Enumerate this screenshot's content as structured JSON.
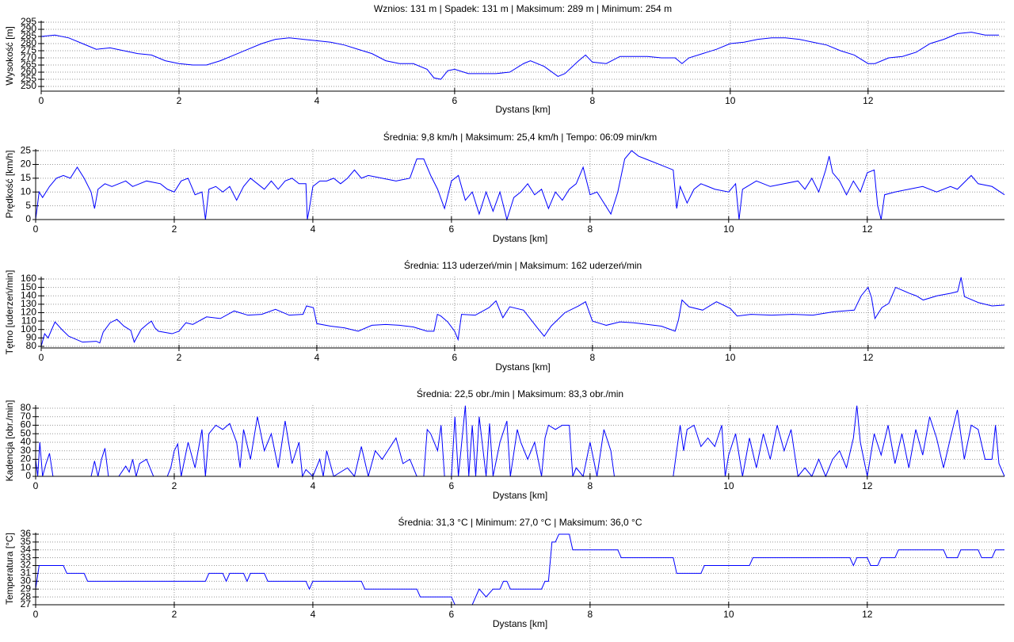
{
  "chart_data": [
    {
      "type": "line",
      "title": "Wznios: 131 m | Spadek: 131 m | Maksimum: 289 m | Minimum: 254 m",
      "xlabel": "Dystans [km]",
      "ylabel": "Wysokość [m]",
      "color": "#0000ff",
      "grid": true,
      "xlim": [
        0,
        13.98
      ],
      "ylim": [
        246.7,
        296.1
      ],
      "xticks": [
        0,
        2,
        4,
        6,
        8,
        10,
        12
      ],
      "yticks": [
        250,
        255,
        260,
        265,
        270,
        275,
        280,
        285,
        290,
        295
      ],
      "x": [
        0,
        0.2,
        0.4,
        0.6,
        0.8,
        1.0,
        1.2,
        1.4,
        1.6,
        1.8,
        2.0,
        2.2,
        2.4,
        2.6,
        2.8,
        3.0,
        3.2,
        3.4,
        3.6,
        3.8,
        4.0,
        4.2,
        4.4,
        4.6,
        4.8,
        5.0,
        5.2,
        5.4,
        5.6,
        5.7,
        5.8,
        5.9,
        6.0,
        6.2,
        6.4,
        6.6,
        6.8,
        7.0,
        7.1,
        7.3,
        7.5,
        7.6,
        7.8,
        7.9,
        8.0,
        8.2,
        8.4,
        8.6,
        8.8,
        9.0,
        9.2,
        9.3,
        9.4,
        9.6,
        9.8,
        10.0,
        10.2,
        10.4,
        10.6,
        10.8,
        11.0,
        11.2,
        11.4,
        11.6,
        11.8,
        12.0,
        12.1,
        12.3,
        12.5,
        12.7,
        12.9,
        13.1,
        13.3,
        13.5,
        13.7,
        13.9
      ],
      "values": [
        285,
        286,
        284,
        280,
        276,
        277,
        275,
        273,
        272,
        268,
        266,
        265,
        265,
        268,
        272,
        276,
        280,
        283,
        284,
        283,
        282,
        281,
        279,
        276,
        273,
        268,
        266,
        266,
        262,
        256,
        255,
        261,
        262,
        259,
        259,
        259,
        260,
        266,
        268,
        264,
        257,
        259,
        268,
        272,
        267,
        266,
        271,
        271,
        271,
        270,
        270,
        266,
        270,
        273,
        276,
        280,
        281,
        283,
        284,
        284,
        283,
        281,
        279,
        275,
        272,
        266,
        266,
        270,
        271,
        274,
        280,
        283,
        287,
        288,
        286,
        286
      ]
    },
    {
      "type": "line",
      "title": "Średnia: 9,8 km/h | Maksimum: 25,4 km/h | Tempo: 06:09 min/km",
      "xlabel": "Dystans [km]",
      "ylabel": "Prędkość [km/h]",
      "color": "#0000ff",
      "grid": true,
      "xlim": [
        0,
        13.98
      ],
      "ylim": [
        0,
        25.6
      ],
      "xticks": [
        0,
        2,
        4,
        6,
        8,
        10,
        12
      ],
      "yticks": [
        0,
        5,
        10,
        15,
        20,
        25
      ],
      "x": [
        0,
        0.05,
        0.1,
        0.2,
        0.3,
        0.4,
        0.5,
        0.6,
        0.7,
        0.8,
        0.85,
        0.9,
        1.0,
        1.1,
        1.2,
        1.3,
        1.4,
        1.5,
        1.6,
        1.8,
        1.9,
        2.0,
        2.1,
        2.2,
        2.3,
        2.4,
        2.45,
        2.5,
        2.6,
        2.7,
        2.8,
        2.9,
        3.0,
        3.1,
        3.2,
        3.3,
        3.4,
        3.5,
        3.6,
        3.7,
        3.8,
        3.9,
        3.92,
        3.95,
        4.0,
        4.1,
        4.2,
        4.3,
        4.4,
        4.5,
        4.6,
        4.7,
        4.8,
        5.0,
        5.2,
        5.4,
        5.5,
        5.6,
        5.7,
        5.8,
        5.9,
        6.0,
        6.1,
        6.2,
        6.3,
        6.4,
        6.5,
        6.6,
        6.7,
        6.8,
        6.9,
        7.0,
        7.1,
        7.2,
        7.3,
        7.4,
        7.5,
        7.6,
        7.7,
        7.8,
        7.9,
        8.0,
        8.1,
        8.3,
        8.4,
        8.5,
        8.6,
        8.7,
        8.8,
        9.0,
        9.2,
        9.25,
        9.3,
        9.4,
        9.5,
        9.6,
        9.8,
        10.0,
        10.1,
        10.15,
        10.2,
        10.4,
        10.6,
        10.8,
        11.0,
        11.1,
        11.2,
        11.3,
        11.4,
        11.45,
        11.5,
        11.6,
        11.7,
        11.8,
        11.9,
        12.0,
        12.1,
        12.15,
        12.2,
        12.25,
        12.4,
        12.6,
        12.8,
        13.0,
        13.2,
        13.3,
        13.5,
        13.6,
        13.8,
        13.98
      ],
      "values": [
        0,
        10,
        8,
        12,
        15,
        16,
        15,
        19,
        15,
        10,
        4,
        11,
        13,
        12,
        13,
        14,
        12,
        13,
        14,
        13,
        11,
        10,
        14,
        15,
        9,
        10,
        0,
        11,
        12,
        10,
        12,
        7,
        12,
        15,
        13,
        11,
        14,
        11,
        14,
        15,
        13,
        13,
        0,
        4,
        12,
        14,
        14,
        15,
        13,
        15,
        18,
        15,
        16,
        15,
        14,
        15,
        22,
        22,
        16,
        11,
        4,
        14,
        16,
        7,
        10,
        2,
        10,
        3,
        10,
        0,
        8,
        10,
        13,
        9,
        11,
        4,
        10,
        7,
        11,
        13,
        19,
        9,
        10,
        2,
        10,
        22,
        25,
        23,
        22,
        20,
        18,
        4,
        12,
        6,
        11,
        13,
        11,
        10,
        13,
        0,
        11,
        14,
        12,
        13,
        14,
        11,
        15,
        10,
        18,
        23,
        17,
        14,
        9,
        14,
        10,
        17,
        18,
        5,
        0,
        9,
        10,
        11,
        12,
        10,
        12,
        11,
        16,
        13,
        12,
        9
      ]
    },
    {
      "type": "line",
      "title": "Średnia: 113 uderzeń/min | Maksimum: 162 uderzeń/min",
      "xlabel": "Dystans [km]",
      "ylabel": "Tętno [uderzeń/min]",
      "color": "#0000ff",
      "grid": true,
      "xlim": [
        0,
        13.98
      ],
      "ylim": [
        78.1,
        162.8
      ],
      "xticks": [
        0,
        2,
        4,
        6,
        8,
        10,
        12
      ],
      "yticks": [
        80,
        90,
        100,
        110,
        120,
        130,
        140,
        150,
        160
      ],
      "x": [
        0,
        0.05,
        0.1,
        0.2,
        0.3,
        0.4,
        0.6,
        0.8,
        0.85,
        0.9,
        1.0,
        1.1,
        1.2,
        1.3,
        1.35,
        1.45,
        1.55,
        1.6,
        1.65,
        1.7,
        1.9,
        2.0,
        2.1,
        2.2,
        2.4,
        2.6,
        2.8,
        3.0,
        3.2,
        3.4,
        3.6,
        3.8,
        3.85,
        3.95,
        4.0,
        4.2,
        4.4,
        4.6,
        4.8,
        5.0,
        5.2,
        5.4,
        5.6,
        5.7,
        5.75,
        5.8,
        5.9,
        6.0,
        6.05,
        6.1,
        6.3,
        6.5,
        6.6,
        6.7,
        6.8,
        7.0,
        7.2,
        7.3,
        7.4,
        7.6,
        7.8,
        7.9,
        8.0,
        8.2,
        8.4,
        8.6,
        8.8,
        9.0,
        9.2,
        9.25,
        9.3,
        9.4,
        9.6,
        9.8,
        10.0,
        10.1,
        10.3,
        10.6,
        10.9,
        11.2,
        11.5,
        11.8,
        11.9,
        12.0,
        12.05,
        12.1,
        12.2,
        12.3,
        12.4,
        12.6,
        12.7,
        12.8,
        13.0,
        13.2,
        13.3,
        13.35,
        13.4,
        13.6,
        13.8,
        13.98
      ],
      "values": [
        80,
        95,
        90,
        109,
        100,
        92,
        85,
        86,
        84,
        97,
        108,
        112,
        104,
        99,
        85,
        100,
        107,
        110,
        102,
        98,
        95,
        98,
        108,
        106,
        115,
        113,
        122,
        117,
        118,
        124,
        117,
        118,
        128,
        126,
        107,
        104,
        102,
        98,
        105,
        106,
        105,
        103,
        98,
        98,
        118,
        116,
        109,
        98,
        88,
        118,
        117,
        126,
        134,
        114,
        127,
        123,
        102,
        92,
        104,
        120,
        128,
        133,
        110,
        105,
        109,
        108,
        106,
        104,
        98,
        112,
        135,
        127,
        123,
        133,
        125,
        116,
        118,
        117,
        118,
        117,
        121,
        123,
        140,
        150,
        138,
        113,
        126,
        131,
        150,
        143,
        140,
        135,
        140,
        143,
        145,
        162,
        139,
        132,
        128,
        129
      ]
    },
    {
      "type": "line",
      "title": "Średnia: 22,5 obr./min | Maksimum: 83,3 obr./min",
      "xlabel": "Dystans [km]",
      "ylabel": "Kadencja [obr./min]",
      "color": "#0000ff",
      "grid": true,
      "xlim": [
        0,
        13.98
      ],
      "ylim": [
        0,
        83.7
      ],
      "xticks": [
        0,
        2,
        4,
        6,
        8,
        10,
        12
      ],
      "yticks": [
        0,
        10,
        20,
        30,
        40,
        50,
        60,
        70,
        80
      ],
      "x": [
        0,
        0.03,
        0.06,
        0.1,
        0.15,
        0.2,
        0.25,
        0.8,
        0.85,
        0.9,
        0.95,
        1.0,
        1.05,
        1.1,
        1.2,
        1.3,
        1.35,
        1.4,
        1.45,
        1.5,
        1.6,
        1.7,
        1.9,
        1.95,
        2.0,
        2.05,
        2.1,
        2.2,
        2.3,
        2.4,
        2.45,
        2.5,
        2.6,
        2.7,
        2.8,
        2.9,
        2.95,
        3.0,
        3.1,
        3.2,
        3.3,
        3.4,
        3.5,
        3.6,
        3.7,
        3.8,
        3.85,
        3.9,
        4.0,
        4.1,
        4.15,
        4.2,
        4.3,
        4.5,
        4.6,
        4.7,
        4.8,
        4.9,
        5.0,
        5.2,
        5.3,
        5.4,
        5.5,
        5.6,
        5.65,
        5.7,
        5.8,
        5.85,
        5.9,
        6.0,
        6.05,
        6.1,
        6.2,
        6.25,
        6.3,
        6.35,
        6.4,
        6.5,
        6.55,
        6.6,
        6.7,
        6.8,
        6.85,
        6.95,
        7.0,
        7.1,
        7.2,
        7.3,
        7.35,
        7.4,
        7.5,
        7.6,
        7.7,
        7.75,
        7.8,
        7.9,
        8.0,
        8.1,
        8.2,
        8.3,
        8.35,
        9.2,
        9.3,
        9.35,
        9.4,
        9.5,
        9.6,
        9.7,
        9.8,
        9.9,
        9.95,
        10.0,
        10.1,
        10.2,
        10.3,
        10.4,
        10.5,
        10.6,
        10.7,
        10.8,
        10.9,
        11.0,
        11.1,
        11.2,
        11.3,
        11.4,
        11.5,
        11.6,
        11.7,
        11.8,
        11.85,
        11.9,
        12.0,
        12.1,
        12.2,
        12.3,
        12.4,
        12.5,
        12.6,
        12.7,
        12.8,
        12.9,
        13.0,
        13.1,
        13.2,
        13.3,
        13.4,
        13.5,
        13.6,
        13.7,
        13.8,
        13.85,
        13.9,
        13.98
      ],
      "values": [
        20,
        0,
        40,
        0,
        15,
        27,
        0,
        0,
        18,
        0,
        20,
        33,
        0,
        0,
        0,
        12,
        5,
        20,
        0,
        15,
        20,
        0,
        0,
        10,
        30,
        38,
        0,
        40,
        10,
        55,
        0,
        50,
        60,
        55,
        62,
        40,
        10,
        55,
        20,
        70,
        30,
        50,
        10,
        65,
        15,
        40,
        0,
        8,
        0,
        20,
        0,
        30,
        0,
        10,
        0,
        35,
        0,
        30,
        20,
        45,
        15,
        20,
        0,
        0,
        55,
        50,
        30,
        60,
        0,
        0,
        70,
        0,
        83,
        0,
        60,
        0,
        70,
        0,
        62,
        0,
        40,
        65,
        0,
        55,
        40,
        20,
        40,
        0,
        45,
        60,
        55,
        60,
        60,
        0,
        10,
        0,
        40,
        0,
        55,
        30,
        0,
        0,
        60,
        30,
        55,
        60,
        35,
        45,
        35,
        60,
        0,
        25,
        50,
        0,
        45,
        10,
        50,
        20,
        60,
        30,
        55,
        0,
        10,
        0,
        20,
        0,
        20,
        30,
        10,
        45,
        83,
        40,
        0,
        50,
        25,
        60,
        15,
        50,
        10,
        55,
        25,
        70,
        45,
        10,
        45,
        78,
        20,
        60,
        55,
        20,
        20,
        60,
        15,
        0
      ]
    },
    {
      "type": "line",
      "title": "Średnia: 31,3 °C | Minimum: 27,0 °C | Maksimum: 36,0 °C",
      "xlabel": "Dystans [km]",
      "ylabel": "Temperatura [°C]",
      "color": "#0000ff",
      "grid": true,
      "xlim": [
        0,
        13.98
      ],
      "ylim": [
        27,
        36.2
      ],
      "xticks": [
        0,
        2,
        4,
        6,
        8,
        10,
        12
      ],
      "yticks": [
        27,
        28,
        29,
        30,
        31,
        32,
        33,
        34,
        35,
        36
      ],
      "x": [
        0,
        0.05,
        0.4,
        0.45,
        0.7,
        0.75,
        2.45,
        2.5,
        2.7,
        2.75,
        2.8,
        3.0,
        3.05,
        3.1,
        3.3,
        3.35,
        3.9,
        3.95,
        4.0,
        4.7,
        4.75,
        5.5,
        5.55,
        6.0,
        6.05,
        6.3,
        6.35,
        6.4,
        6.5,
        6.6,
        6.7,
        6.75,
        6.8,
        6.85,
        7.3,
        7.35,
        7.4,
        7.45,
        7.5,
        7.55,
        7.7,
        7.75,
        8.4,
        8.45,
        9.2,
        9.25,
        9.6,
        9.65,
        10.3,
        10.35,
        11.75,
        11.8,
        11.85,
        12.0,
        12.05,
        12.15,
        12.2,
        12.4,
        12.45,
        13.1,
        13.15,
        13.3,
        13.35,
        13.6,
        13.65,
        13.8,
        13.85,
        13.98
      ],
      "values": [
        29,
        32,
        32,
        31,
        31,
        30,
        30,
        31,
        31,
        30,
        31,
        31,
        30,
        31,
        31,
        30,
        30,
        29,
        30,
        30,
        29,
        29,
        28,
        28,
        27,
        27,
        28,
        29,
        28,
        29,
        29,
        30,
        30,
        29,
        29,
        30,
        30,
        35,
        35,
        36,
        36,
        34,
        34,
        33,
        33,
        31,
        31,
        32,
        32,
        33,
        33,
        32,
        33,
        33,
        32,
        32,
        33,
        33,
        34,
        34,
        33,
        33,
        34,
        34,
        33,
        33,
        34,
        34
      ]
    }
  ]
}
